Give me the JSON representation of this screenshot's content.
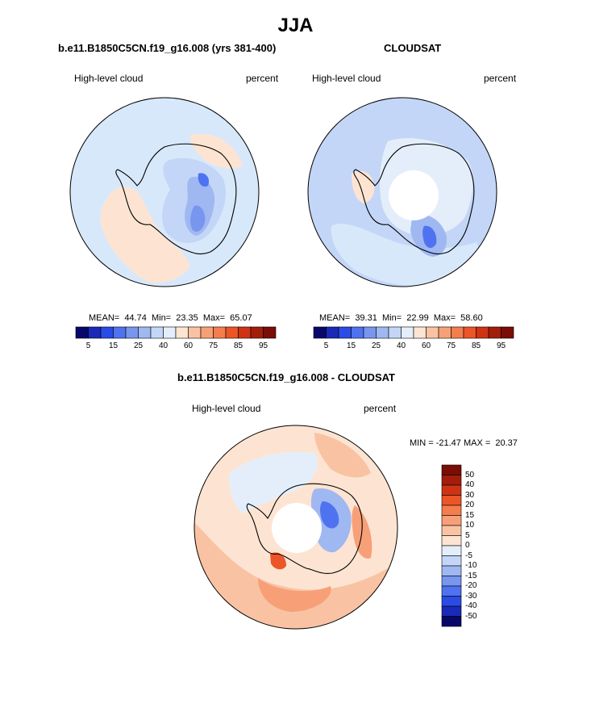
{
  "title": "JJA",
  "panels": [
    {
      "title": "b.e11.B1850C5CN.f19_g16.008 (yrs 381-400)",
      "left_label": "High-level cloud",
      "right_label": "percent",
      "stats": "MEAN=  44.74  Min=  23.35  Max=  65.07"
    },
    {
      "title": "CLOUDSAT",
      "left_label": "High-level cloud",
      "right_label": "percent",
      "stats": "MEAN=  39.31  Min=  22.99  Max=  58.60"
    },
    {
      "title": "b.e11.B1850C5CN.f19_g16.008 - CLOUDSAT",
      "left_label": "High-level cloud",
      "right_label": "percent",
      "stats": "MIN = -21.47 MAX =  20.37"
    }
  ],
  "colorbar_abs": {
    "colors": [
      "#08086b",
      "#1a2ab8",
      "#2a4be6",
      "#4f73f0",
      "#7896ee",
      "#9fb8f2",
      "#c4d6f7",
      "#e4eefb",
      "#fde4d2",
      "#f9c3a3",
      "#f7a078",
      "#f47d4e",
      "#ec5527",
      "#cf3314",
      "#a31d0b",
      "#7a0d05"
    ],
    "tick_labels": [
      "5",
      "15",
      "25",
      "40",
      "60",
      "75",
      "85",
      "95"
    ]
  },
  "colorbar_diff": {
    "colors": [
      "#08086b",
      "#1a2ab8",
      "#2a4be6",
      "#4f73f0",
      "#7896ee",
      "#9fb8f2",
      "#c4d6f7",
      "#e4eefb",
      "#fde4d2",
      "#f9c3a3",
      "#f7a078",
      "#f47d4e",
      "#ec5527",
      "#cf3314",
      "#a31d0b",
      "#7a0d05"
    ],
    "tick_labels": [
      "50",
      "40",
      "30",
      "20",
      "15",
      "10",
      "5",
      "0",
      "-5",
      "-10",
      "-15",
      "-20",
      "-30",
      "-40",
      "-50"
    ]
  }
}
